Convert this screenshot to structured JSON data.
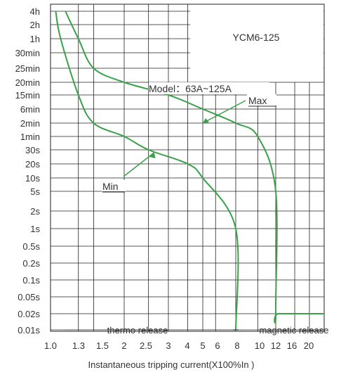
{
  "chart_data": {
    "type": "line",
    "title": "YCM6-125",
    "subtitle": "Model：63A~125A",
    "xlabel": "Instantaneous tripping current(X100%In )",
    "ylabel": "",
    "x_ticks": [
      "1.0",
      "1.3",
      "1.5",
      "2",
      "2.5",
      "3",
      "4",
      "5",
      "6",
      "8",
      "10",
      "12",
      "16",
      "20"
    ],
    "y_ticks": [
      "4h",
      "2h",
      "1h",
      "30min",
      "25min",
      "20min",
      "15min",
      "6min",
      "2min",
      "1min",
      "30s",
      "20s",
      "10s",
      "5s",
      "2s",
      "1s",
      "0.5s",
      "0.2s",
      "0.1s",
      "0.05s",
      "0.02s",
      "0.01s"
    ],
    "series": [
      {
        "name": "Max",
        "color": "#3aa04a",
        "points": [
          {
            "x": 1.15,
            "y": "4h"
          },
          {
            "x": 1.3,
            "y": "1h"
          },
          {
            "x": 1.5,
            "y": "25min"
          },
          {
            "x": 2.0,
            "y": "20min"
          },
          {
            "x": 3.0,
            "y": "15min"
          },
          {
            "x": 5.0,
            "y": "6min"
          },
          {
            "x": 8.0,
            "y": "2min"
          },
          {
            "x": 10.0,
            "y": "1min"
          },
          {
            "x": 12.0,
            "y": "5s"
          },
          {
            "x": 12.0,
            "y": "0.02s"
          },
          {
            "x": 12.6,
            "y": "0.02s"
          },
          {
            "x": 24.0,
            "y": "0.02s"
          }
        ]
      },
      {
        "name": "Min",
        "color": "#3aa04a",
        "points": [
          {
            "x": 1.05,
            "y": "4h"
          },
          {
            "x": 1.1,
            "y": "1h"
          },
          {
            "x": 1.3,
            "y": "15min"
          },
          {
            "x": 1.5,
            "y": "2min"
          },
          {
            "x": 2.0,
            "y": "1min"
          },
          {
            "x": 2.5,
            "y": "30s"
          },
          {
            "x": 4.0,
            "y": "20s"
          },
          {
            "x": 5.0,
            "y": "10s"
          },
          {
            "x": 8.0,
            "y": "1s"
          },
          {
            "x": 8.0,
            "y": "0.01s"
          }
        ]
      }
    ],
    "annotations": [
      {
        "text": "Max",
        "target_x": 5.0,
        "target_y": "2min"
      },
      {
        "text": "Min",
        "target_x": 2.5,
        "target_y": "30s"
      },
      {
        "text": "thermo release"
      },
      {
        "text": "magnetic release"
      }
    ],
    "grid": true,
    "legend": "none",
    "colors": {
      "curve": "#3aa04a",
      "grid": "#222222",
      "text": "#333333"
    }
  }
}
